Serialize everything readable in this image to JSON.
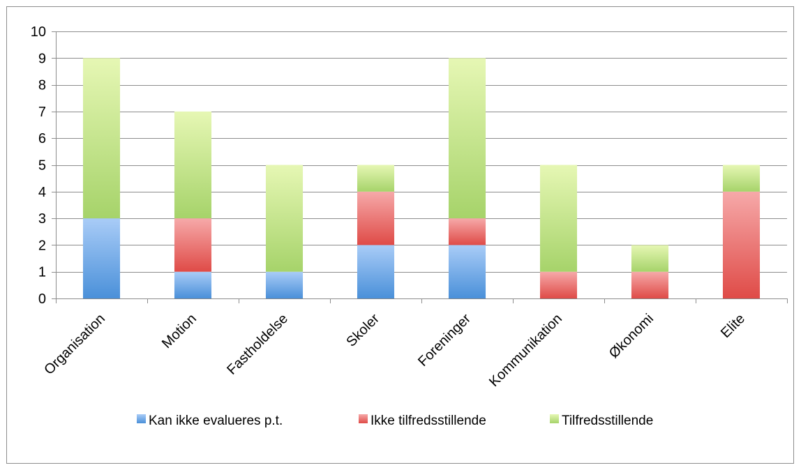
{
  "chart_data": {
    "type": "bar",
    "stacked": true,
    "categories": [
      "Organisation",
      "Motion",
      "Fastholdelse",
      "Skoler",
      "Foreninger",
      "Kommunikation",
      "Økonomi",
      "Elite"
    ],
    "series": [
      {
        "name": "Kan ikke evalueres p.t.",
        "values": [
          3,
          1,
          1,
          2,
          2,
          0,
          0,
          0
        ],
        "color_top": "#a9ccf7",
        "color_bottom": "#4a90d9"
      },
      {
        "name": "Ikke tilfredsstillende",
        "values": [
          0,
          2,
          0,
          2,
          1,
          1,
          1,
          4
        ],
        "color_top": "#f6a9a9",
        "color_bottom": "#df4b47"
      },
      {
        "name": "Tilfredsstillende",
        "values": [
          6,
          4,
          4,
          1,
          6,
          4,
          1,
          1
        ],
        "color_top": "#e6f7b4",
        "color_bottom": "#a6d36a"
      }
    ],
    "yticks": [
      "0",
      "1",
      "2",
      "3",
      "4",
      "5",
      "6",
      "7",
      "8",
      "9",
      "10"
    ],
    "ylim": [
      0,
      10
    ],
    "grid": true,
    "legend_position": "bottom"
  }
}
